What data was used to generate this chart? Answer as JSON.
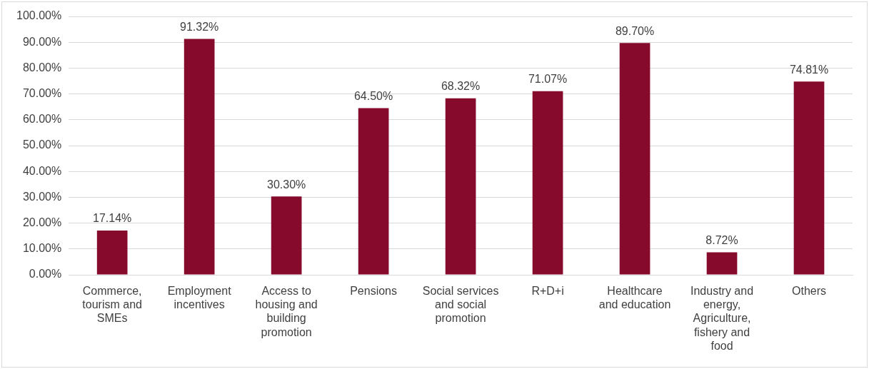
{
  "chart_data": {
    "type": "bar",
    "categories": [
      "Commerce, tourism and SMEs",
      "Employment incentives",
      "Access to housing and building promotion",
      "Pensions",
      "Social services and social promotion",
      "R+D+i",
      "Healthcare and education",
      "Industry and energy, Agriculture, fishery and food",
      "Others"
    ],
    "values": [
      17.14,
      91.32,
      30.3,
      64.5,
      68.32,
      71.07,
      89.7,
      8.72,
      74.81
    ],
    "value_labels": [
      "17.14%",
      "91.32%",
      "30.30%",
      "64.50%",
      "68.32%",
      "71.07%",
      "89.70%",
      "8.72%",
      "74.81%"
    ],
    "color": "#850a2b",
    "ylim": [
      0,
      100
    ],
    "yticks": [
      {
        "value": 0,
        "label": "0.00%"
      },
      {
        "value": 10,
        "label": "10.00%"
      },
      {
        "value": 20,
        "label": "20.00%"
      },
      {
        "value": 30,
        "label": "30.00%"
      },
      {
        "value": 40,
        "label": "40.00%"
      },
      {
        "value": 50,
        "label": "50.00%"
      },
      {
        "value": 60,
        "label": "60.00%"
      },
      {
        "value": 70,
        "label": "70.00%"
      },
      {
        "value": 80,
        "label": "80.00%"
      },
      {
        "value": 90,
        "label": "90.00%"
      },
      {
        "value": 100,
        "label": "100.00%"
      }
    ],
    "grid": "y",
    "legend": false
  }
}
